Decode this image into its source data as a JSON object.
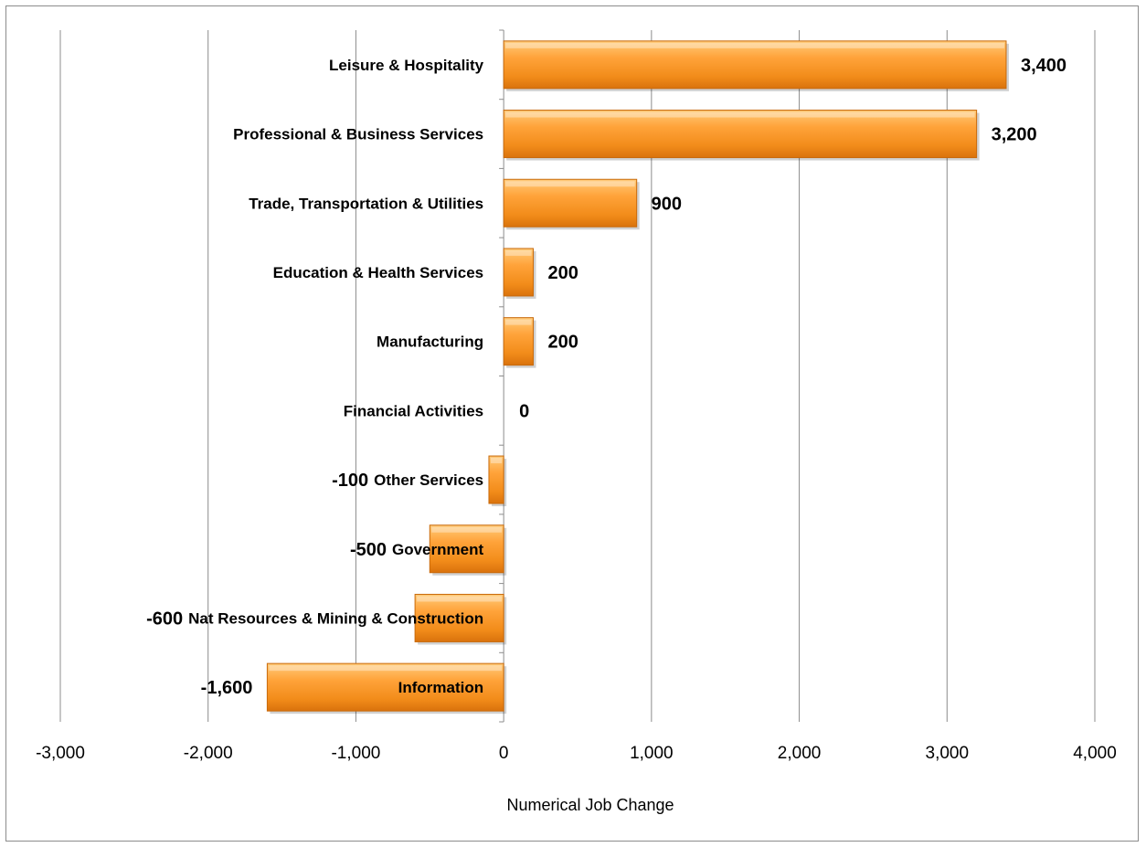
{
  "chart_data": {
    "type": "bar",
    "orientation": "horizontal",
    "title": "",
    "xlabel": "Numerical Job Change",
    "ylabel": "",
    "xlim": [
      -3000,
      4000
    ],
    "xticks": [
      -3000,
      -2000,
      -1000,
      0,
      1000,
      2000,
      3000,
      4000
    ],
    "xtick_labels": [
      "-3,000",
      "-2,000",
      "-1,000",
      "0",
      "1,000",
      "2,000",
      "3,000",
      "4,000"
    ],
    "grid": "vertical",
    "legend": "none",
    "categories": [
      "Leisure & Hospitality",
      "Professional & Business Services",
      "Trade, Transportation & Utilities",
      "Education & Health Services",
      "Manufacturing",
      "Financial Activities",
      "Other Services",
      "Government",
      "Nat Resources & Mining & Construction",
      "Information"
    ],
    "values": [
      3400,
      3200,
      900,
      200,
      200,
      0,
      -100,
      -500,
      -600,
      -1600
    ],
    "value_labels": [
      "3,400",
      "3,200",
      "900",
      "200",
      "200",
      "0",
      "-100",
      "-500",
      "-600",
      "-1,600"
    ],
    "colors": {
      "bar_light": "#ffb347",
      "bar_mid": "#f7941d",
      "bar_dark": "#e07a10",
      "bar_edge": "#c86a0c",
      "grid": "#8c8c8c",
      "axis": "#8c8c8c"
    }
  }
}
